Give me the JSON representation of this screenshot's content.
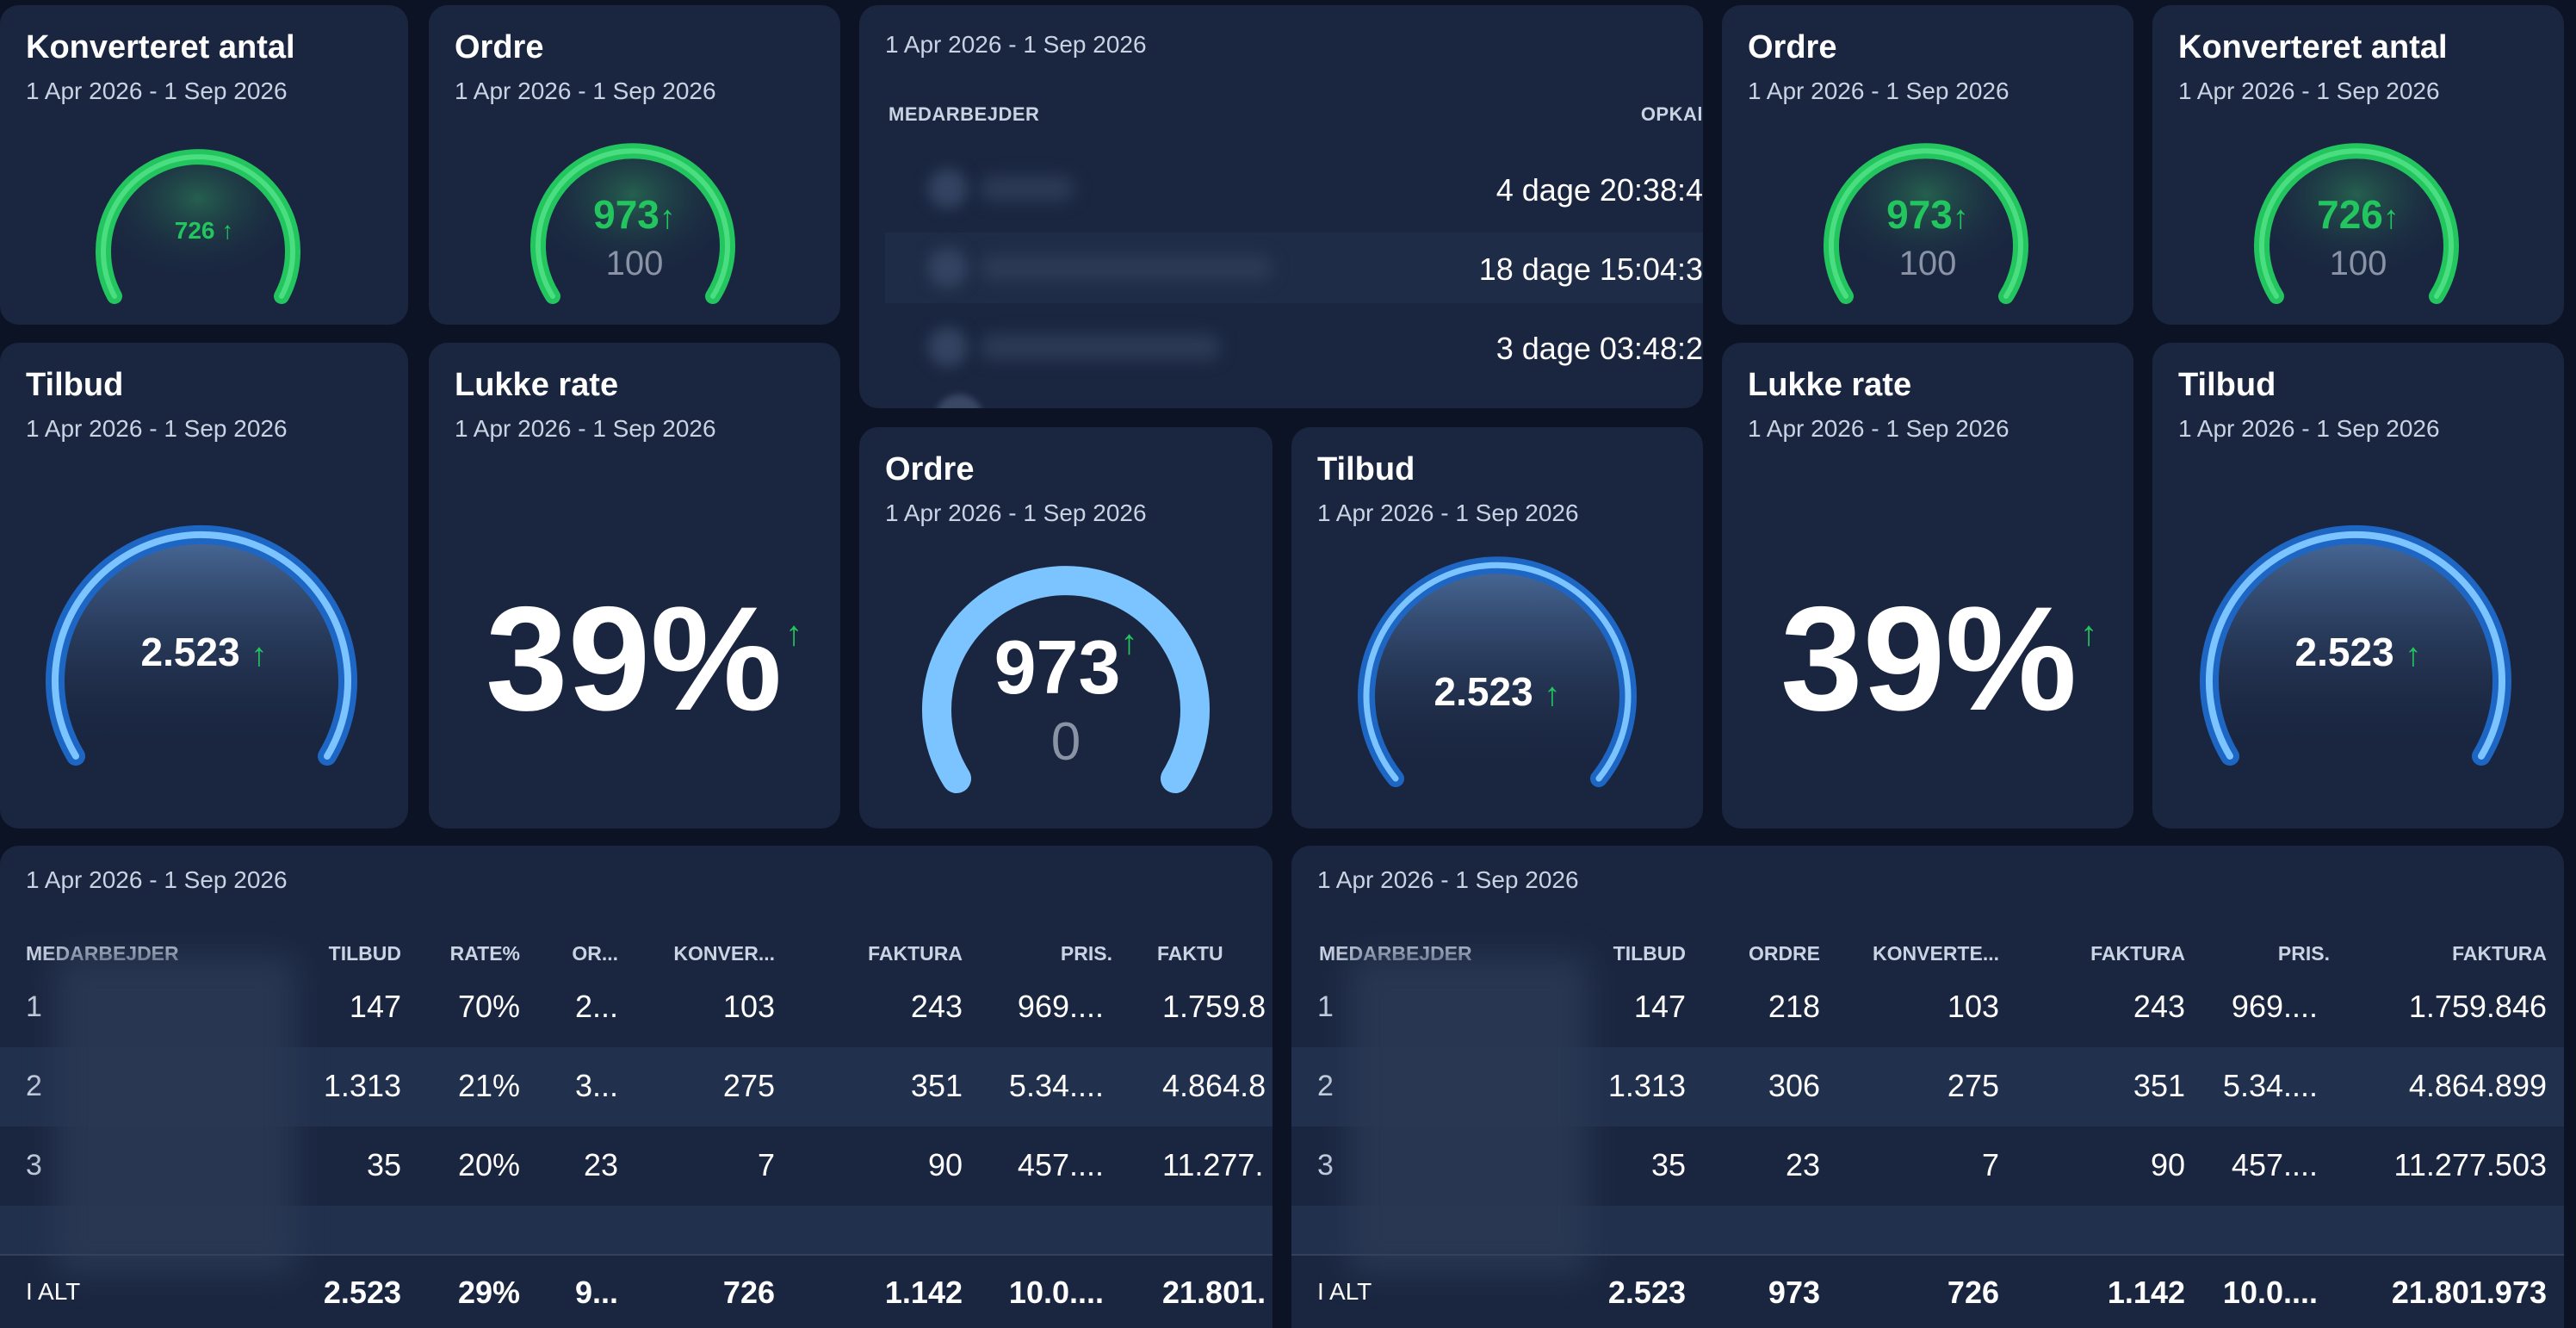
{
  "date_range": "1 Apr 2026 - 1 Sep 2026",
  "colors": {
    "green": "#22c55e",
    "blue": "#60b4ff",
    "background": "#0b1324",
    "card": "#1a2640"
  },
  "cards": {
    "konverteret_left": {
      "title": "Konverteret antal",
      "value": "726",
      "arrow": "↑"
    },
    "ordre_left": {
      "title": "Ordre",
      "value": "973",
      "arrow": "↑",
      "target": "100"
    },
    "ordre_right": {
      "title": "Ordre",
      "value": "973",
      "arrow": "↑",
      "target": "100"
    },
    "konverteret_right": {
      "title": "Konverteret antal",
      "value": "726",
      "arrow": "↑",
      "target": "100"
    },
    "tilbud_left": {
      "title": "Tilbud",
      "value": "2.523",
      "arrow": "↑"
    },
    "lukke_left": {
      "title": "Lukke rate",
      "value": "39%",
      "arrow": "↑"
    },
    "ordre_center": {
      "title": "Ordre",
      "value": "973",
      "arrow": "↑",
      "target": "0"
    },
    "tilbud_center": {
      "title": "Tilbud",
      "value": "2.523",
      "arrow": "↑"
    },
    "lukke_right": {
      "title": "Lukke rate",
      "value": "39%",
      "arrow": "↑"
    },
    "tilbud_right": {
      "title": "Tilbud",
      "value": "2.523",
      "arrow": "↑"
    }
  },
  "employee_list": {
    "col_employee": "MEDARBEJDER",
    "col_calls": "OPKAl",
    "rows": [
      {
        "time": "4 dage 20:38:4"
      },
      {
        "time": "18 dage 15:04:3"
      },
      {
        "time": "3 dage 03:48:2"
      }
    ]
  },
  "table_left": {
    "headers": [
      "MEDARBEJDER",
      "TILBUD",
      "RATE%",
      "OR...",
      "KONVER...",
      "FAKTURA",
      "PRIS.",
      "FAKTU"
    ],
    "rows": [
      [
        "1",
        "147",
        "70%",
        "2...",
        "103",
        "243",
        "969....",
        "1.759.8"
      ],
      [
        "2",
        "1.313",
        "21%",
        "3...",
        "275",
        "351",
        "5.34....",
        "4.864.8"
      ],
      [
        "3",
        "35",
        "20%",
        "23",
        "7",
        "90",
        "457....",
        "11.277."
      ]
    ],
    "total": [
      "I ALT",
      "2.523",
      "29%",
      "9...",
      "726",
      "1.142",
      "10.0....",
      "21.801."
    ]
  },
  "table_right": {
    "headers": [
      "MEDARBEJDER",
      "TILBUD",
      "ORDRE",
      "KONVERTE...",
      "FAKTURA",
      "PRIS.",
      "FAKTURA"
    ],
    "rows": [
      [
        "1",
        "147",
        "218",
        "103",
        "243",
        "969....",
        "1.759.846"
      ],
      [
        "2",
        "1.313",
        "306",
        "275",
        "351",
        "5.34....",
        "4.864.899"
      ],
      [
        "3",
        "35",
        "23",
        "7",
        "90",
        "457....",
        "11.277.503"
      ]
    ],
    "total": [
      "I ALT",
      "2.523",
      "973",
      "726",
      "1.142",
      "10.0....",
      "21.801.973"
    ]
  }
}
